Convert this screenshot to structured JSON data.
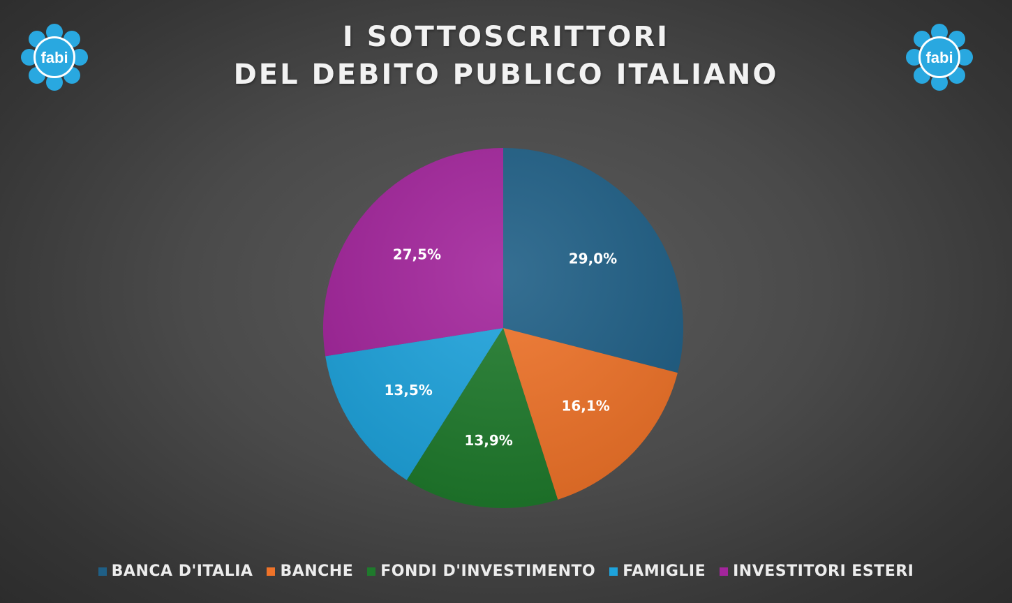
{
  "title": {
    "line1": "I SOTTOSCRITTORI",
    "line2": "DEL DEBITO PUBLICO ITALIANO"
  },
  "logo": {
    "text": "fabi",
    "color": "#29a8e0"
  },
  "chart_data": {
    "type": "pie",
    "start_angle_deg": 0,
    "direction": "clockwise",
    "legend_position": "bottom",
    "series": [
      {
        "name": "BANCA D'ITALIA",
        "value": 29.0,
        "label": "29,0%",
        "color": "#1f5f86"
      },
      {
        "name": "BANCHE",
        "value": 16.1,
        "label": "16,1%",
        "color": "#ef7329"
      },
      {
        "name": "FONDI D'INVESTIMENTO",
        "value": 13.9,
        "label": "13,9%",
        "color": "#1f7a2c"
      },
      {
        "name": "FAMIGLIE",
        "value": 13.5,
        "label": "13,5%",
        "color": "#1ea3dc"
      },
      {
        "name": "INVESTITORI ESTERI",
        "value": 27.5,
        "label": "27,5%",
        "color": "#a3259c"
      }
    ]
  }
}
